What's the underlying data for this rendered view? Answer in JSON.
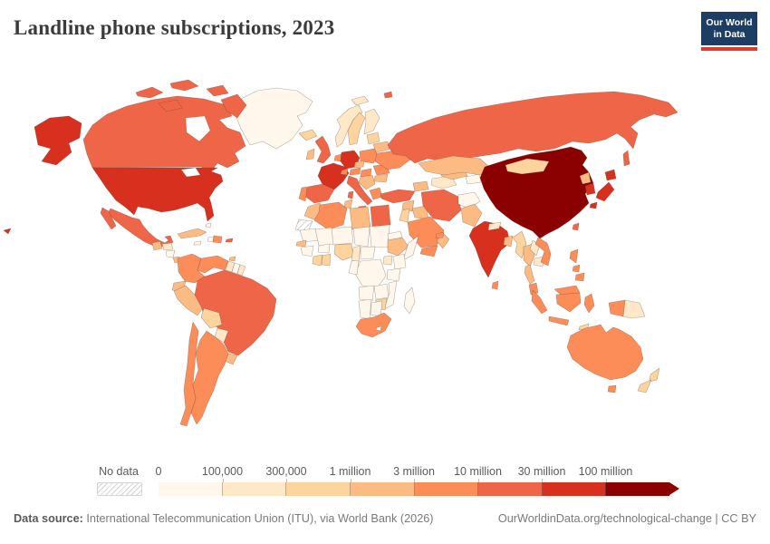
{
  "header": {
    "title": "Landline phone subscriptions, 2023",
    "logo": {
      "line1": "Our World",
      "line2": "in Data",
      "navy": "#1d3d63",
      "red": "#d73c2c"
    }
  },
  "legend": {
    "no_data_label": "No data",
    "tick_labels": [
      "0",
      "100,000",
      "300,000",
      "1 million",
      "3 million",
      "10 million",
      "30 million",
      "100 million"
    ]
  },
  "footer": {
    "source_label": "Data source:",
    "source_text": " International Telecommunication Union (ITU), via World Bank (2026)",
    "credit": "OurWorldinData.org/technological-change | CC BY"
  },
  "chart_data": {
    "type": "heatmap",
    "subtype": "world-choropleth-map",
    "title": "Landline phone subscriptions, 2023",
    "unit": "landline phone subscriptions (count)",
    "legend_position": "bottom",
    "bins": [
      {
        "label": "0–100,000",
        "color": "#fff7ec"
      },
      {
        "label": "100,000–300,000",
        "color": "#fee8c8"
      },
      {
        "label": "300,000–1 million",
        "color": "#fdd49e"
      },
      {
        "label": "1 million–3 million",
        "color": "#fdbb84"
      },
      {
        "label": "3 million–10 million",
        "color": "#fc8d59"
      },
      {
        "label": "10 million–30 million",
        "color": "#ef6548"
      },
      {
        "label": "30 million–100 million",
        "color": "#d7301f"
      },
      {
        "label": "100 million+",
        "color": "#8b0000"
      }
    ],
    "no_data": {
      "label": "No data",
      "pattern": "diagonal-hatch"
    },
    "countries": {
      "united-states": {
        "name": "United States",
        "bin": 6
      },
      "canada": {
        "name": "Canada",
        "bin": 5
      },
      "greenland": {
        "name": "Greenland",
        "bin": 0
      },
      "mexico": {
        "name": "Mexico",
        "bin": 5
      },
      "guatemala": {
        "name": "Guatemala",
        "bin": 3
      },
      "honduras": {
        "name": "Honduras",
        "bin": 1
      },
      "nicaragua": {
        "name": "Nicaragua",
        "bin": 0
      },
      "costa-rica": {
        "name": "Costa Rica",
        "bin": 3
      },
      "panama": {
        "name": "Panama",
        "bin": 3
      },
      "cuba": {
        "name": "Cuba",
        "bin": 3
      },
      "jamaica": {
        "name": "Jamaica",
        "bin": 0
      },
      "haiti": {
        "name": "Haiti",
        "bin": 0
      },
      "dominican-republic": {
        "name": "Dominican Republic",
        "bin": 4
      },
      "puerto-rico": {
        "name": "Puerto Rico",
        "bin": 5
      },
      "bahamas": {
        "name": "Bahamas",
        "bin": 0
      },
      "trinidad-and-tobago": {
        "name": "Trinidad and Tobago",
        "bin": 3
      },
      "colombia": {
        "name": "Colombia",
        "bin": 4
      },
      "venezuela": {
        "name": "Venezuela",
        "bin": 4
      },
      "guyana": {
        "name": "Guyana",
        "bin": 1
      },
      "suriname": {
        "name": "Suriname",
        "bin": 0
      },
      "french-guiana": {
        "name": "French Guiana",
        "bin": 1
      },
      "ecuador": {
        "name": "Ecuador",
        "bin": 3
      },
      "peru": {
        "name": "Peru",
        "bin": 3
      },
      "brazil": {
        "name": "Brazil",
        "bin": 5
      },
      "bolivia": {
        "name": "Bolivia",
        "bin": 2
      },
      "paraguay": {
        "name": "Paraguay",
        "bin": 1
      },
      "uruguay": {
        "name": "Uruguay",
        "bin": 3
      },
      "argentina": {
        "name": "Argentina",
        "bin": 4
      },
      "chile": {
        "name": "Chile",
        "bin": 4
      },
      "iceland": {
        "name": "Iceland",
        "bin": 2
      },
      "norway": {
        "name": "Norway",
        "bin": 1
      },
      "sweden": {
        "name": "Sweden",
        "bin": 2
      },
      "finland": {
        "name": "Finland",
        "bin": 1
      },
      "denmark": {
        "name": "Denmark",
        "bin": 5
      },
      "united-kingdom": {
        "name": "United Kingdom",
        "bin": 5
      },
      "ireland": {
        "name": "Ireland",
        "bin": 3
      },
      "netherlands": {
        "name": "Netherlands",
        "bin": 4
      },
      "germany": {
        "name": "Germany",
        "bin": 6
      },
      "poland": {
        "name": "Poland",
        "bin": 4
      },
      "france": {
        "name": "France",
        "bin": 6
      },
      "spain": {
        "name": "Spain",
        "bin": 5
      },
      "portugal": {
        "name": "Portugal",
        "bin": 4
      },
      "italy": {
        "name": "Italy",
        "bin": 5
      },
      "switzerland": {
        "name": "Switzerland",
        "bin": 4
      },
      "austria": {
        "name": "Austria",
        "bin": 4
      },
      "czechia": {
        "name": "Czechia",
        "bin": 3
      },
      "hungary": {
        "name": "Hungary",
        "bin": 4
      },
      "serbia": {
        "name": "Serbia and Western Balkans",
        "bin": 3
      },
      "greece": {
        "name": "Greece",
        "bin": 4
      },
      "romania": {
        "name": "Romania",
        "bin": 4
      },
      "bulgaria": {
        "name": "Bulgaria",
        "bin": 3
      },
      "ukraine": {
        "name": "Ukraine",
        "bin": 4
      },
      "belarus": {
        "name": "Belarus",
        "bin": 3
      },
      "lithuania": {
        "name": "Baltic states",
        "bin": 2
      },
      "russia": {
        "name": "Russia",
        "bin": 5
      },
      "turkey": {
        "name": "Turkey",
        "bin": 5
      },
      "azerbaijan": {
        "name": "Caucasus",
        "bin": 3
      },
      "syria": {
        "name": "Syria",
        "bin": 3
      },
      "iraq": {
        "name": "Iraq",
        "bin": 3
      },
      "jordan": {
        "name": "Jordan and Israel",
        "bin": 2
      },
      "saudi-arabia": {
        "name": "Saudi Arabia",
        "bin": 4
      },
      "yemen": {
        "name": "Yemen",
        "bin": 4
      },
      "oman": {
        "name": "Oman",
        "bin": 3
      },
      "united-arab-emirates": {
        "name": "United Arab Emirates",
        "bin": 4
      },
      "iran": {
        "name": "Iran",
        "bin": 5
      },
      "afghanistan": {
        "name": "Afghanistan",
        "bin": 0
      },
      "pakistan": {
        "name": "Pakistan",
        "bin": 3
      },
      "turkmenistan": {
        "name": "Turkmenistan",
        "bin": 1
      },
      "uzbekistan": {
        "name": "Uzbekistan",
        "bin": 3
      },
      "kyrgyzstan": {
        "name": "Kyrgyzstan and Tajikistan",
        "bin": 0
      },
      "kazakhstan": {
        "name": "Kazakhstan",
        "bin": 3
      },
      "china": {
        "name": "China",
        "bin": 7
      },
      "mongolia": {
        "name": "Mongolia",
        "bin": 2
      },
      "north-korea": {
        "name": "North Korea",
        "bin": 3
      },
      "south-korea": {
        "name": "South Korea",
        "bin": 6
      },
      "japan": {
        "name": "Japan",
        "bin": 6
      },
      "taiwan": {
        "name": "Taiwan",
        "bin": 5
      },
      "india": {
        "name": "India",
        "bin": 6
      },
      "nepal": {
        "name": "Nepal",
        "bin": 1
      },
      "bangladesh": {
        "name": "Bangladesh",
        "bin": 3
      },
      "sri-lanka": {
        "name": "Sri Lanka",
        "bin": 4
      },
      "myanmar": {
        "name": "Myanmar",
        "bin": 2
      },
      "thailand": {
        "name": "Thailand",
        "bin": 3
      },
      "laos": {
        "name": "Laos",
        "bin": 1
      },
      "cambodia": {
        "name": "Cambodia",
        "bin": 1
      },
      "vietnam": {
        "name": "Vietnam",
        "bin": 4
      },
      "malaysia": {
        "name": "Malaysia",
        "bin": 4
      },
      "philippines": {
        "name": "Philippines",
        "bin": 4
      },
      "indonesia": {
        "name": "Indonesia",
        "bin": 4
      },
      "timor-leste": {
        "name": "Timor-Leste",
        "bin": 2
      },
      "papua-new-guinea": {
        "name": "Papua New Guinea",
        "bin": 1
      },
      "australia": {
        "name": "Australia",
        "bin": 4
      },
      "new-zealand": {
        "name": "New Zealand",
        "bin": 2
      },
      "morocco": {
        "name": "Morocco",
        "bin": 3
      },
      "western-sahara": {
        "name": "Western Sahara",
        "bin": -1
      },
      "algeria": {
        "name": "Algeria",
        "bin": 4
      },
      "tunisia": {
        "name": "Tunisia",
        "bin": 3
      },
      "libya": {
        "name": "Libya",
        "bin": 3
      },
      "egypt": {
        "name": "Egypt",
        "bin": 5
      },
      "mauritania": {
        "name": "Mauritania",
        "bin": 0
      },
      "senegal": {
        "name": "Senegal",
        "bin": 3
      },
      "guinea": {
        "name": "Guinea",
        "bin": 0
      },
      "mali": {
        "name": "Mali",
        "bin": 0
      },
      "burkina-faso": {
        "name": "Burkina Faso",
        "bin": 0
      },
      "cote-divoire": {
        "name": "Cote d'Ivoire",
        "bin": 2
      },
      "ghana": {
        "name": "Ghana",
        "bin": 2
      },
      "niger": {
        "name": "Niger",
        "bin": 0
      },
      "nigeria": {
        "name": "Nigeria",
        "bin": 2
      },
      "chad": {
        "name": "Chad",
        "bin": 0
      },
      "sudan": {
        "name": "Sudan",
        "bin": 0
      },
      "cameroon": {
        "name": "Cameroon",
        "bin": 1
      },
      "central-african-republic": {
        "name": "Central African Republic",
        "bin": 0
      },
      "eritrea": {
        "name": "Eritrea",
        "bin": 0
      },
      "ethiopia": {
        "name": "Ethiopia",
        "bin": 3
      },
      "somalia": {
        "name": "Somalia",
        "bin": 0
      },
      "kenya": {
        "name": "Kenya",
        "bin": 0
      },
      "uganda": {
        "name": "Uganda",
        "bin": 1
      },
      "democratic-republic-of-congo": {
        "name": "Democratic Republic of Congo",
        "bin": 0
      },
      "congo": {
        "name": "Congo and Gabon",
        "bin": 0
      },
      "tanzania": {
        "name": "Tanzania",
        "bin": 0
      },
      "angola": {
        "name": "Angola",
        "bin": 0
      },
      "zambia": {
        "name": "Zambia",
        "bin": 0
      },
      "mozambique": {
        "name": "Mozambique",
        "bin": 0
      },
      "zimbabwe": {
        "name": "Zimbabwe",
        "bin": 2
      },
      "namibia": {
        "name": "Namibia",
        "bin": 0
      },
      "botswana": {
        "name": "Botswana",
        "bin": 0
      },
      "south-africa": {
        "name": "South Africa",
        "bin": 4
      },
      "lesotho": {
        "name": "Lesotho",
        "bin": 0
      },
      "madagascar": {
        "name": "Madagascar",
        "bin": 0
      }
    }
  }
}
